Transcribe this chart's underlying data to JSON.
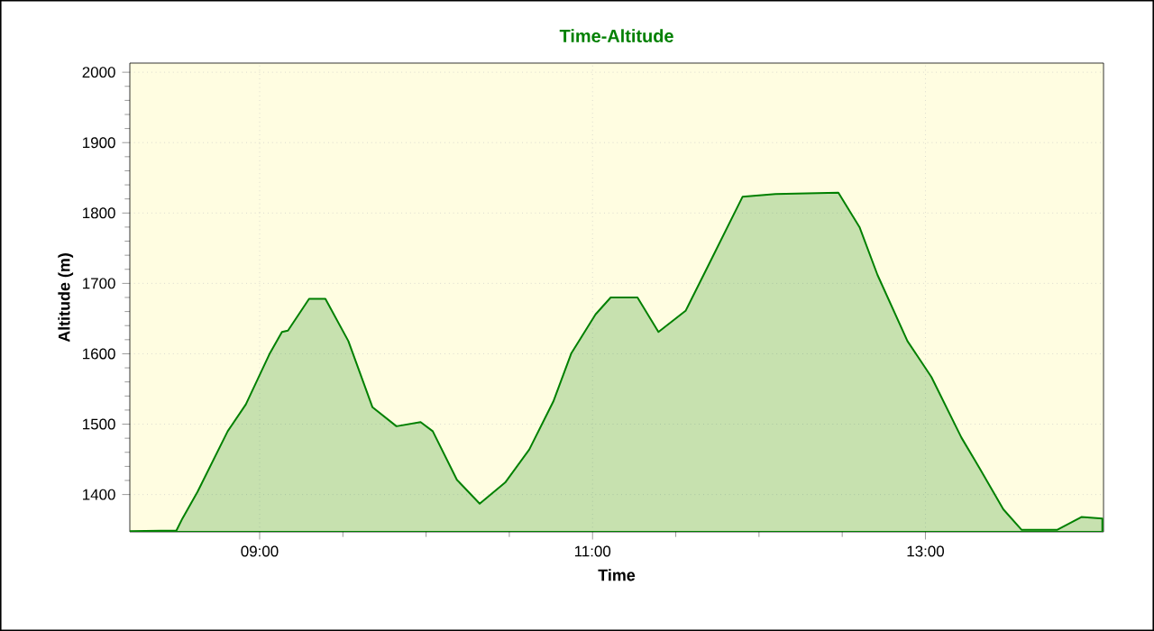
{
  "chart_data": {
    "type": "area",
    "title": "Time-Altitude",
    "xlabel": "Time",
    "ylabel": "Altitude (m)",
    "xlim": [
      8.22,
      14.07
    ],
    "ylim": [
      1347,
      2013
    ],
    "xticks": [
      {
        "value": 9,
        "label": "09:00"
      },
      {
        "value": 11,
        "label": "11:00"
      },
      {
        "value": 13,
        "label": "13:00"
      }
    ],
    "yticks": [
      1400,
      1500,
      1600,
      1700,
      1800,
      1900,
      2000
    ],
    "grid": true,
    "series": [
      {
        "color": "#008000",
        "x": [
          8.22,
          8.5,
          8.536,
          8.627,
          8.808,
          8.917,
          9.062,
          9.134,
          9.17,
          9.297,
          9.395,
          9.533,
          9.678,
          9.822,
          9.967,
          10.04,
          10.185,
          10.322,
          10.475,
          10.62,
          10.764,
          10.873,
          11.018,
          11.109,
          11.27,
          11.396,
          11.559,
          11.703,
          11.901,
          12.099,
          12.477,
          12.604,
          12.712,
          12.892,
          13.036,
          13.216,
          13.324,
          13.468,
          13.577,
          13.793,
          13.937,
          14.063
        ],
        "values": [
          1348,
          1349,
          1366,
          1404,
          1490,
          1528,
          1601,
          1631,
          1633,
          1678,
          1678,
          1618,
          1524,
          1497,
          1503,
          1490,
          1421,
          1387,
          1417,
          1464,
          1532,
          1601,
          1656,
          1680,
          1680,
          1631,
          1661,
          1729,
          1823,
          1827,
          1829,
          1780,
          1712,
          1618,
          1567,
          1481,
          1438,
          1379,
          1350,
          1350,
          1368,
          1366
        ]
      }
    ]
  }
}
